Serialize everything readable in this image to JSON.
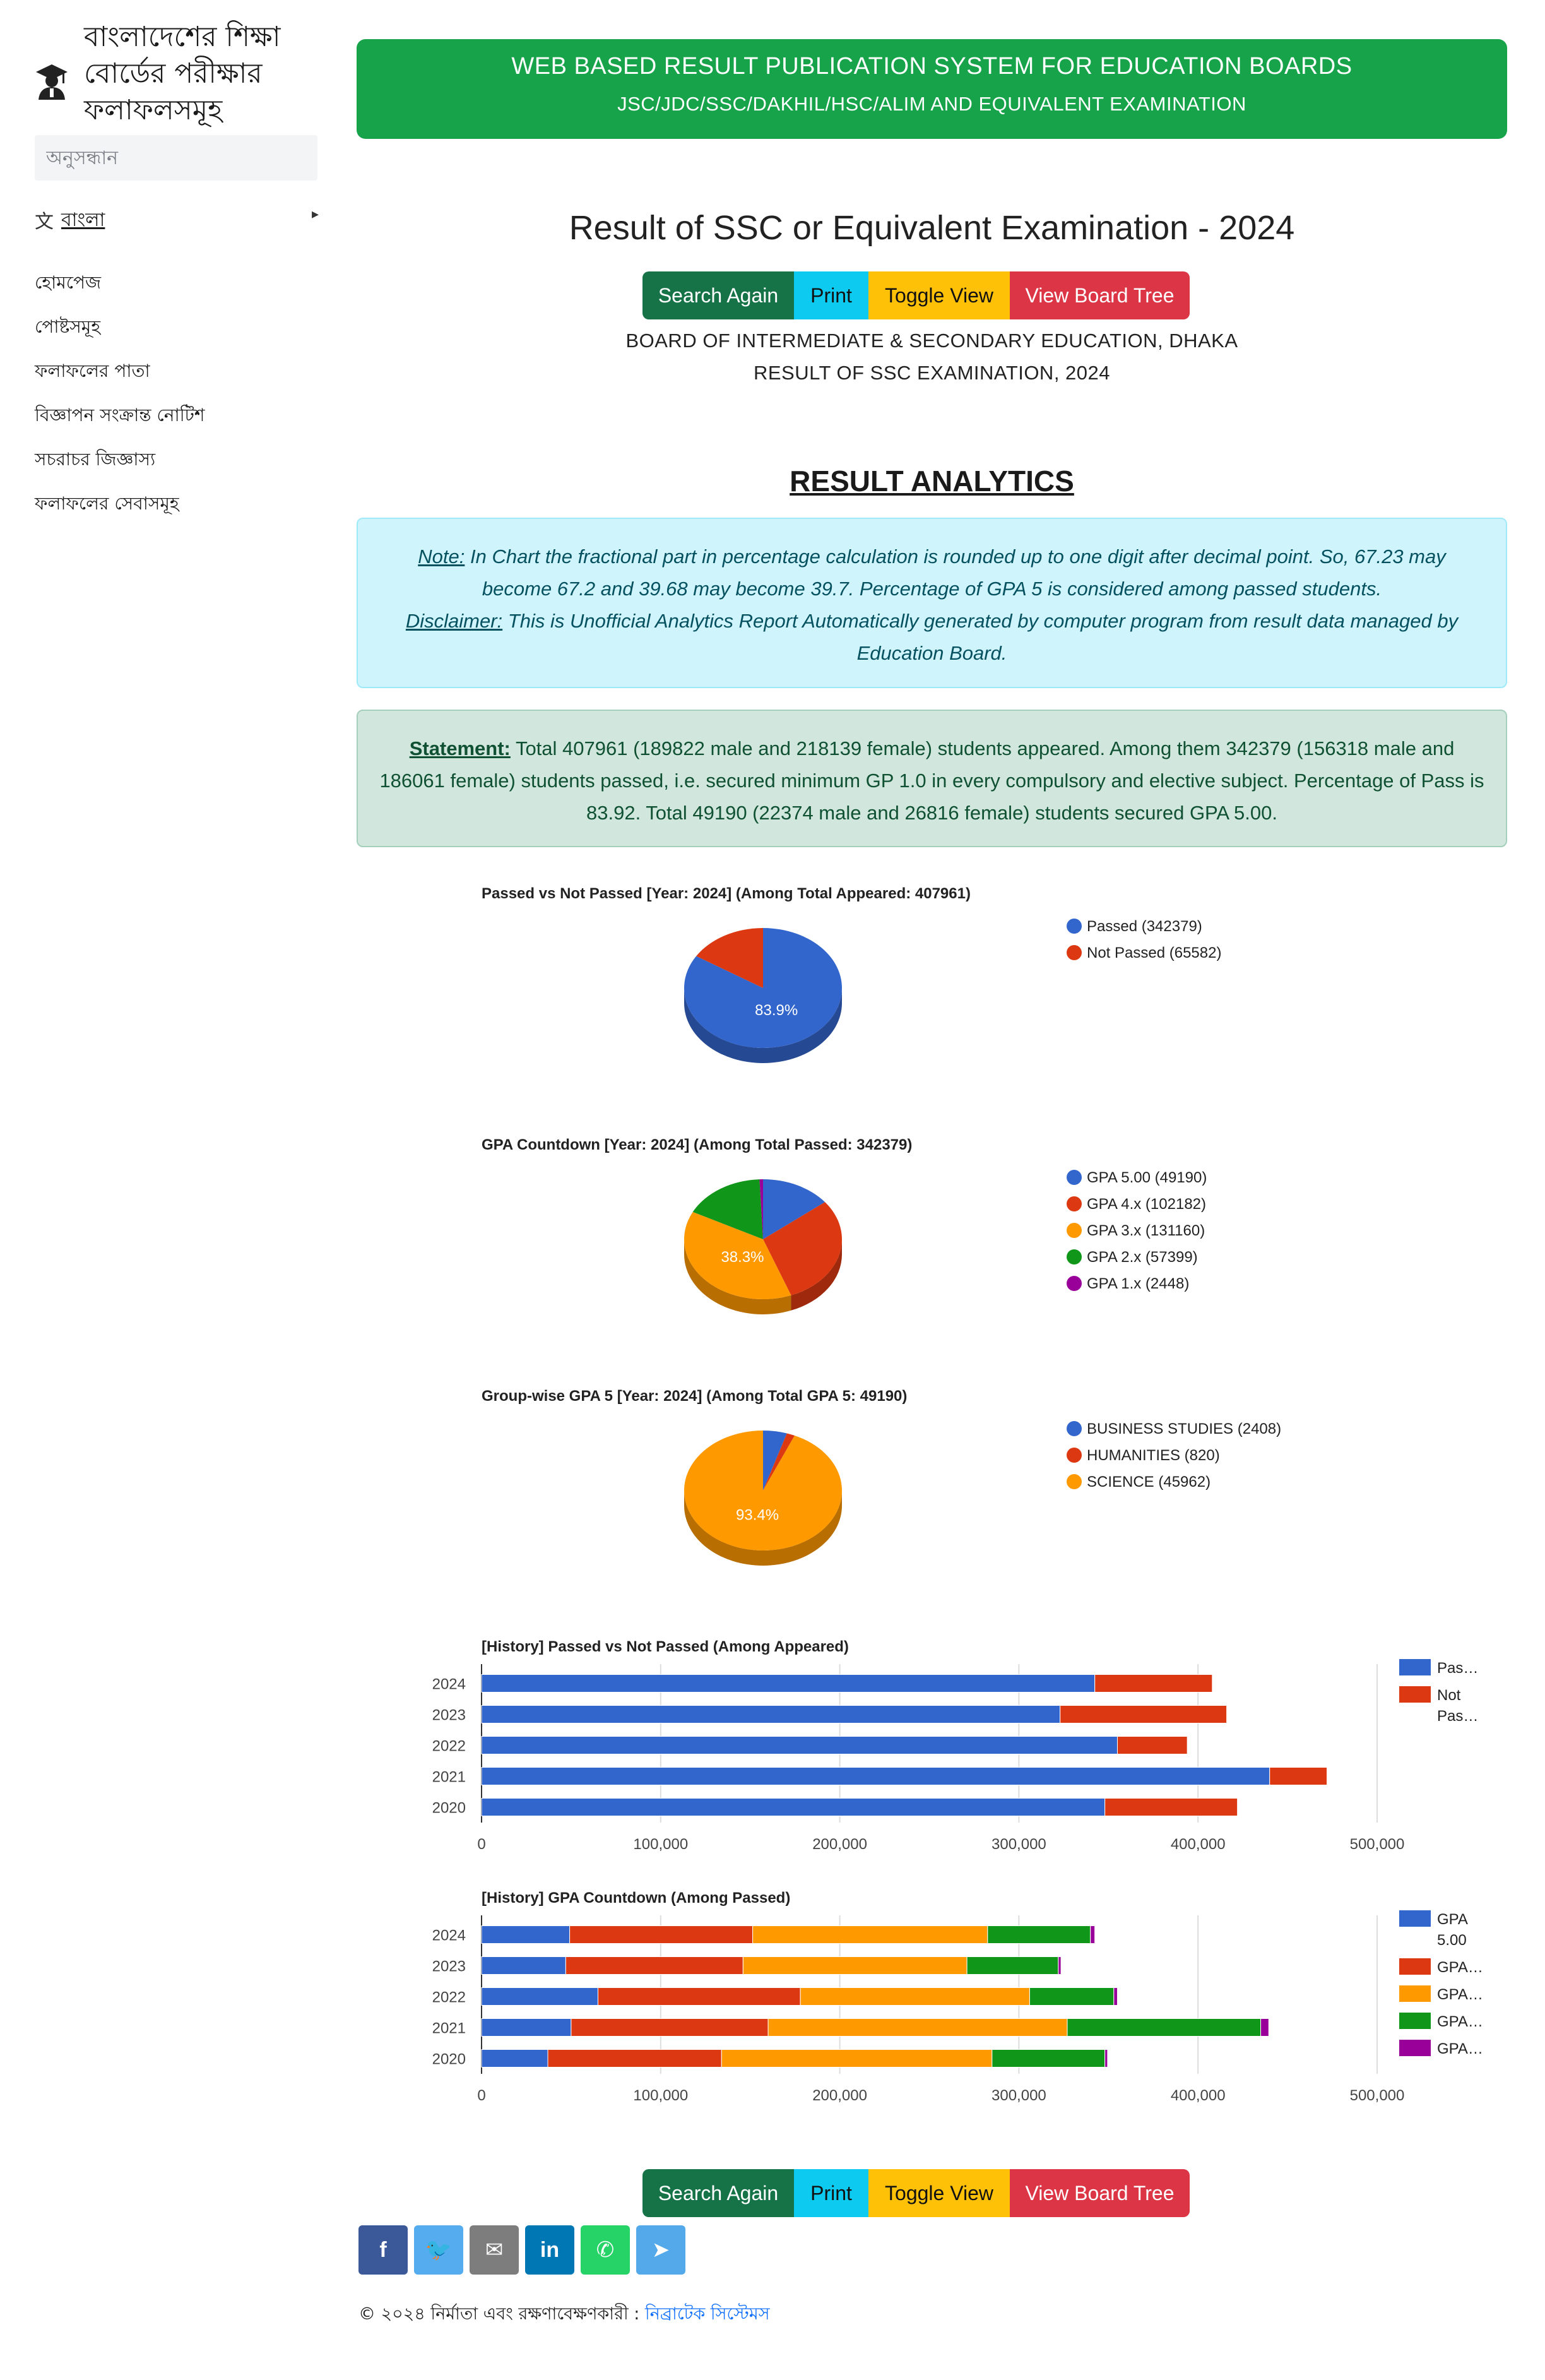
{
  "sidebar": {
    "brand_title": "বাংলাদেশের শিক্ষা বোর্ডের পরীক্ষার ফলাফলসমূহ",
    "search_placeholder": "অনুসন্ধান",
    "language_icon": "translate-icon",
    "language_label": "বাংলা",
    "nav_items": [
      {
        "label": "হোমপেজ"
      },
      {
        "label": "পোষ্টসমূহ"
      },
      {
        "label": "ফলাফলের পাতা"
      },
      {
        "label": "বিজ্ঞাপন সংক্রান্ত নোটিশ"
      },
      {
        "label": "সচরাচর জিজ্ঞাস্য"
      },
      {
        "label": "ফলাফলের সেবাসমূহ"
      }
    ]
  },
  "header": {
    "title": "WEB BASED RESULT PUBLICATION SYSTEM FOR EDUCATION BOARDS",
    "subtitle": "JSC/JDC/SSC/DAKHIL/HSC/ALIM AND EQUIVALENT EXAMINATION",
    "color": "#16a34a"
  },
  "result": {
    "title": "Result of SSC or Equivalent Examination - 2024",
    "board": "BOARD OF INTERMEDIATE & SECONDARY EDUCATION, DHAKA",
    "exam": "RESULT OF SSC EXAMINATION, 2024"
  },
  "buttons": {
    "search_again": "Search Again",
    "print": "Print",
    "toggle_view": "Toggle View",
    "view_board_tree": "View Board Tree"
  },
  "analytics": {
    "title": "RESULT ANALYTICS",
    "note_label": "Note:",
    "note_text": " In Chart the fractional part in percentage calculation is rounded up to one digit after decimal point. So, 67.23 may become 67.2 and 39.68 may become 39.7. Percentage of GPA 5 is considered among passed students.",
    "disclaimer_label": "Disclaimer:",
    "disclaimer_text": " This is Unofficial Analytics Report Automatically generated by computer program from result data managed by Education Board.",
    "statement_label": "Statement:",
    "statement_text": " Total 407961 (189822 male and 218139 female) students appeared. Among them 342379 (156318 male and 186061 female) students passed, i.e. secured minimum GP 1.0 in every compulsory and elective subject. Percentage of Pass is 83.92. Total 49190 (22374 male and 26816 female) students secured GPA 5.00."
  },
  "chart_data": [
    {
      "type": "pie",
      "title": "Passed vs Not Passed [Year: 2024] (Among Total Appeared: 407961)",
      "labels": [
        "Passed (342379)",
        "Not Passed (65582)"
      ],
      "values": [
        342379,
        65582
      ],
      "colors": [
        "#3366cc",
        "#dc3912"
      ],
      "slice_labels": [
        "83.9%",
        ""
      ],
      "legend": "right"
    },
    {
      "type": "pie",
      "title": "GPA Countdown [Year: 2024] (Among Total Passed: 342379)",
      "labels": [
        "GPA 5.00 (49190)",
        "GPA 4.x (102182)",
        "GPA 3.x (131160)",
        "GPA 2.x (57399)",
        "GPA 1.x (2448)"
      ],
      "values": [
        49190,
        102182,
        131160,
        57399,
        2448
      ],
      "colors": [
        "#3366cc",
        "#dc3912",
        "#ff9900",
        "#109618",
        "#990099"
      ],
      "slice_labels": [
        "",
        "",
        "38.3%",
        "",
        ""
      ],
      "legend": "right"
    },
    {
      "type": "pie",
      "title": "Group-wise GPA 5 [Year: 2024] (Among Total GPA 5: 49190)",
      "labels": [
        "BUSINESS STUDIES (2408)",
        "HUMANITIES (820)",
        "SCIENCE (45962)"
      ],
      "values": [
        2408,
        820,
        45962
      ],
      "colors": [
        "#3366cc",
        "#dc3912",
        "#ff9900"
      ],
      "slice_labels": [
        "",
        "",
        "93.4%"
      ],
      "legend": "right"
    },
    {
      "type": "bar",
      "stacked": true,
      "orientation": "horizontal",
      "title": "[History] Passed vs Not Passed (Among Appeared)",
      "categories": [
        "2024",
        "2023",
        "2022",
        "2021",
        "2020"
      ],
      "series": [
        {
          "name": "Pas…",
          "values": [
            342379,
            323000,
            355000,
            440000,
            348000
          ],
          "color": "#3366cc"
        },
        {
          "name": "Not Pas…",
          "values": [
            65582,
            93000,
            39000,
            32000,
            74000
          ],
          "color": "#dc3912"
        }
      ],
      "xlim": [
        0,
        500000
      ],
      "x_ticks": [
        "0",
        "100,000",
        "200,000",
        "300,000",
        "400,000",
        "500,000"
      ],
      "grid": true,
      "legend": "right"
    },
    {
      "type": "bar",
      "stacked": true,
      "orientation": "horizontal",
      "title": "[History] GPA Countdown (Among Passed)",
      "categories": [
        "2024",
        "2023",
        "2022",
        "2021",
        "2020"
      ],
      "series": [
        {
          "name": "GPA 5.00",
          "values": [
            49190,
            47000,
            65000,
            50000,
            37000
          ],
          "color": "#3366cc"
        },
        {
          "name": "GPA…",
          "values": [
            102182,
            99000,
            113000,
            110000,
            97000
          ],
          "color": "#dc3912"
        },
        {
          "name": "GPA…",
          "values": [
            131160,
            125000,
            128000,
            167000,
            151000
          ],
          "color": "#ff9900"
        },
        {
          "name": "GPA…",
          "values": [
            57399,
            51000,
            47000,
            108000,
            63000
          ],
          "color": "#109618"
        },
        {
          "name": "GPA…",
          "values": [
            2448,
            1500,
            2000,
            4500,
            1500
          ],
          "color": "#990099"
        }
      ],
      "xlim": [
        0,
        500000
      ],
      "x_ticks": [
        "0",
        "100,000",
        "200,000",
        "300,000",
        "400,000",
        "500,000"
      ],
      "grid": true,
      "legend": "right"
    }
  ],
  "social": [
    {
      "icon": "facebook-icon",
      "glyph": "f",
      "color": "#3b5998"
    },
    {
      "icon": "twitter-icon",
      "glyph": "🐦",
      "color": "#55acee"
    },
    {
      "icon": "email-icon",
      "glyph": "✉",
      "color": "#7d7d7d"
    },
    {
      "icon": "linkedin-icon",
      "glyph": "in",
      "color": "#0077b5"
    },
    {
      "icon": "whatsapp-icon",
      "glyph": "✆",
      "color": "#25d366"
    },
    {
      "icon": "telegram-icon",
      "glyph": "➤",
      "color": "#54a9eb"
    }
  ],
  "footer": {
    "text": "© ২০২৪ নির্মাতা এবং রক্ষণাবেক্ষণকারী : ",
    "link": "নিব্রাটেক সিস্টেমস"
  }
}
